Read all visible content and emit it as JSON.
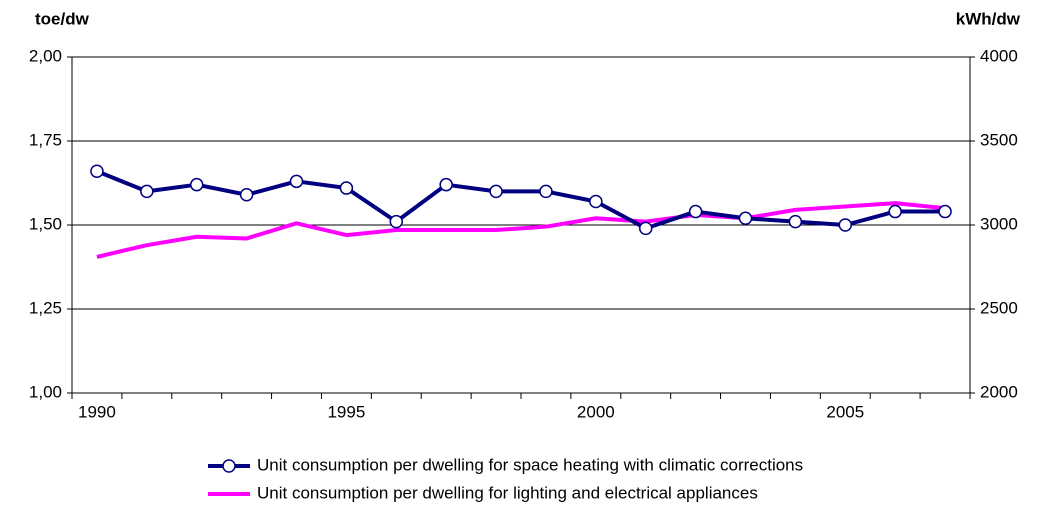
{
  "chart_data": {
    "type": "line",
    "y_label": "toe/dw",
    "y2_label": "kWh/dw",
    "x": [
      1990,
      1991,
      1992,
      1993,
      1994,
      1995,
      1996,
      1997,
      1998,
      1999,
      2000,
      2001,
      2002,
      2003,
      2004,
      2005,
      2006,
      2007
    ],
    "xlim": [
      1989.5,
      2007.5
    ],
    "xticks": [
      1990,
      1995,
      2000,
      2005
    ],
    "ylim": [
      1,
      2
    ],
    "yticks": [
      {
        "value": 1,
        "label": "1,00"
      },
      {
        "value": 1.25,
        "label": "1,25"
      },
      {
        "value": 1.5,
        "label": "1,50"
      },
      {
        "value": 1.75,
        "label": "1,75"
      },
      {
        "value": 2,
        "label": "2,00"
      }
    ],
    "y2lim": [
      2000,
      4000
    ],
    "y2ticks": [
      2000,
      2500,
      3000,
      3500,
      4000
    ],
    "grid": true,
    "series": [
      {
        "name": "Unit consumption per dwelling for space heating with climatic corrections",
        "color": "#000080",
        "markers": true,
        "values": [
          1.66,
          1.6,
          1.62,
          1.59,
          1.63,
          1.61,
          1.51,
          1.62,
          1.6,
          1.6,
          1.57,
          1.49,
          1.54,
          1.52,
          1.51,
          1.5,
          1.54,
          1.54
        ]
      },
      {
        "name": "Unit consumption per dwelling for lighting and electrical appliances",
        "color": "#ff00ff",
        "markers": false,
        "axis": "y2",
        "values": [
          2810,
          2880,
          2930,
          2920,
          3010,
          2940,
          2970,
          2970,
          2970,
          2990,
          3040,
          3020,
          3060,
          3040,
          3090,
          3110,
          3130,
          3100
        ]
      }
    ]
  }
}
